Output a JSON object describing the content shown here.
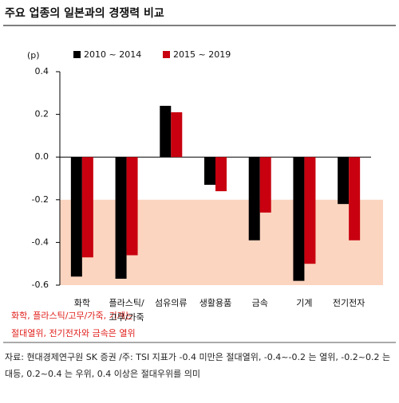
{
  "chart_data": {
    "type": "bar",
    "title": "주요 업종의 일본과의 경쟁력 비교",
    "y_label": "(p)",
    "categories": [
      "화학",
      "플라스틱/\n고무/가죽",
      "섬유의류",
      "생활용품",
      "금속",
      "기계",
      "전기전자"
    ],
    "series": [
      {
        "name": "2010 ~ 2014",
        "color": "#000000",
        "values": [
          -0.56,
          -0.57,
          0.24,
          -0.13,
          -0.39,
          -0.58,
          -0.22
        ]
      },
      {
        "name": "2015 ~ 2019",
        "color": "#c8000f",
        "values": [
          -0.47,
          -0.46,
          0.21,
          -0.16,
          -0.26,
          -0.5,
          -0.39
        ]
      }
    ],
    "ylim": [
      -0.6,
      0.4
    ],
    "yticks": [
      -0.6,
      -0.4,
      -0.2,
      {
        "value": 0,
        "label": "0.0"
      },
      0.2,
      0.4
    ],
    "shaded_range": [
      -0.6,
      -0.2
    ],
    "shaded_color": "#fbd5c0",
    "annotation": "화학, 플라스틱/고무/가죽, 기계는\n절대열위, 전기전자와 금속은 열위",
    "footnote": "자료: 현대경제연구원 SK 증권 /주: TSI 지표가 -0.4 미만은 절대열위, -0.4~-0.2 는 열위, -0.2~0.2 는 대등, 0.2~0.4 는 우위, 0.4 이상은 절대우위를 의미"
  }
}
